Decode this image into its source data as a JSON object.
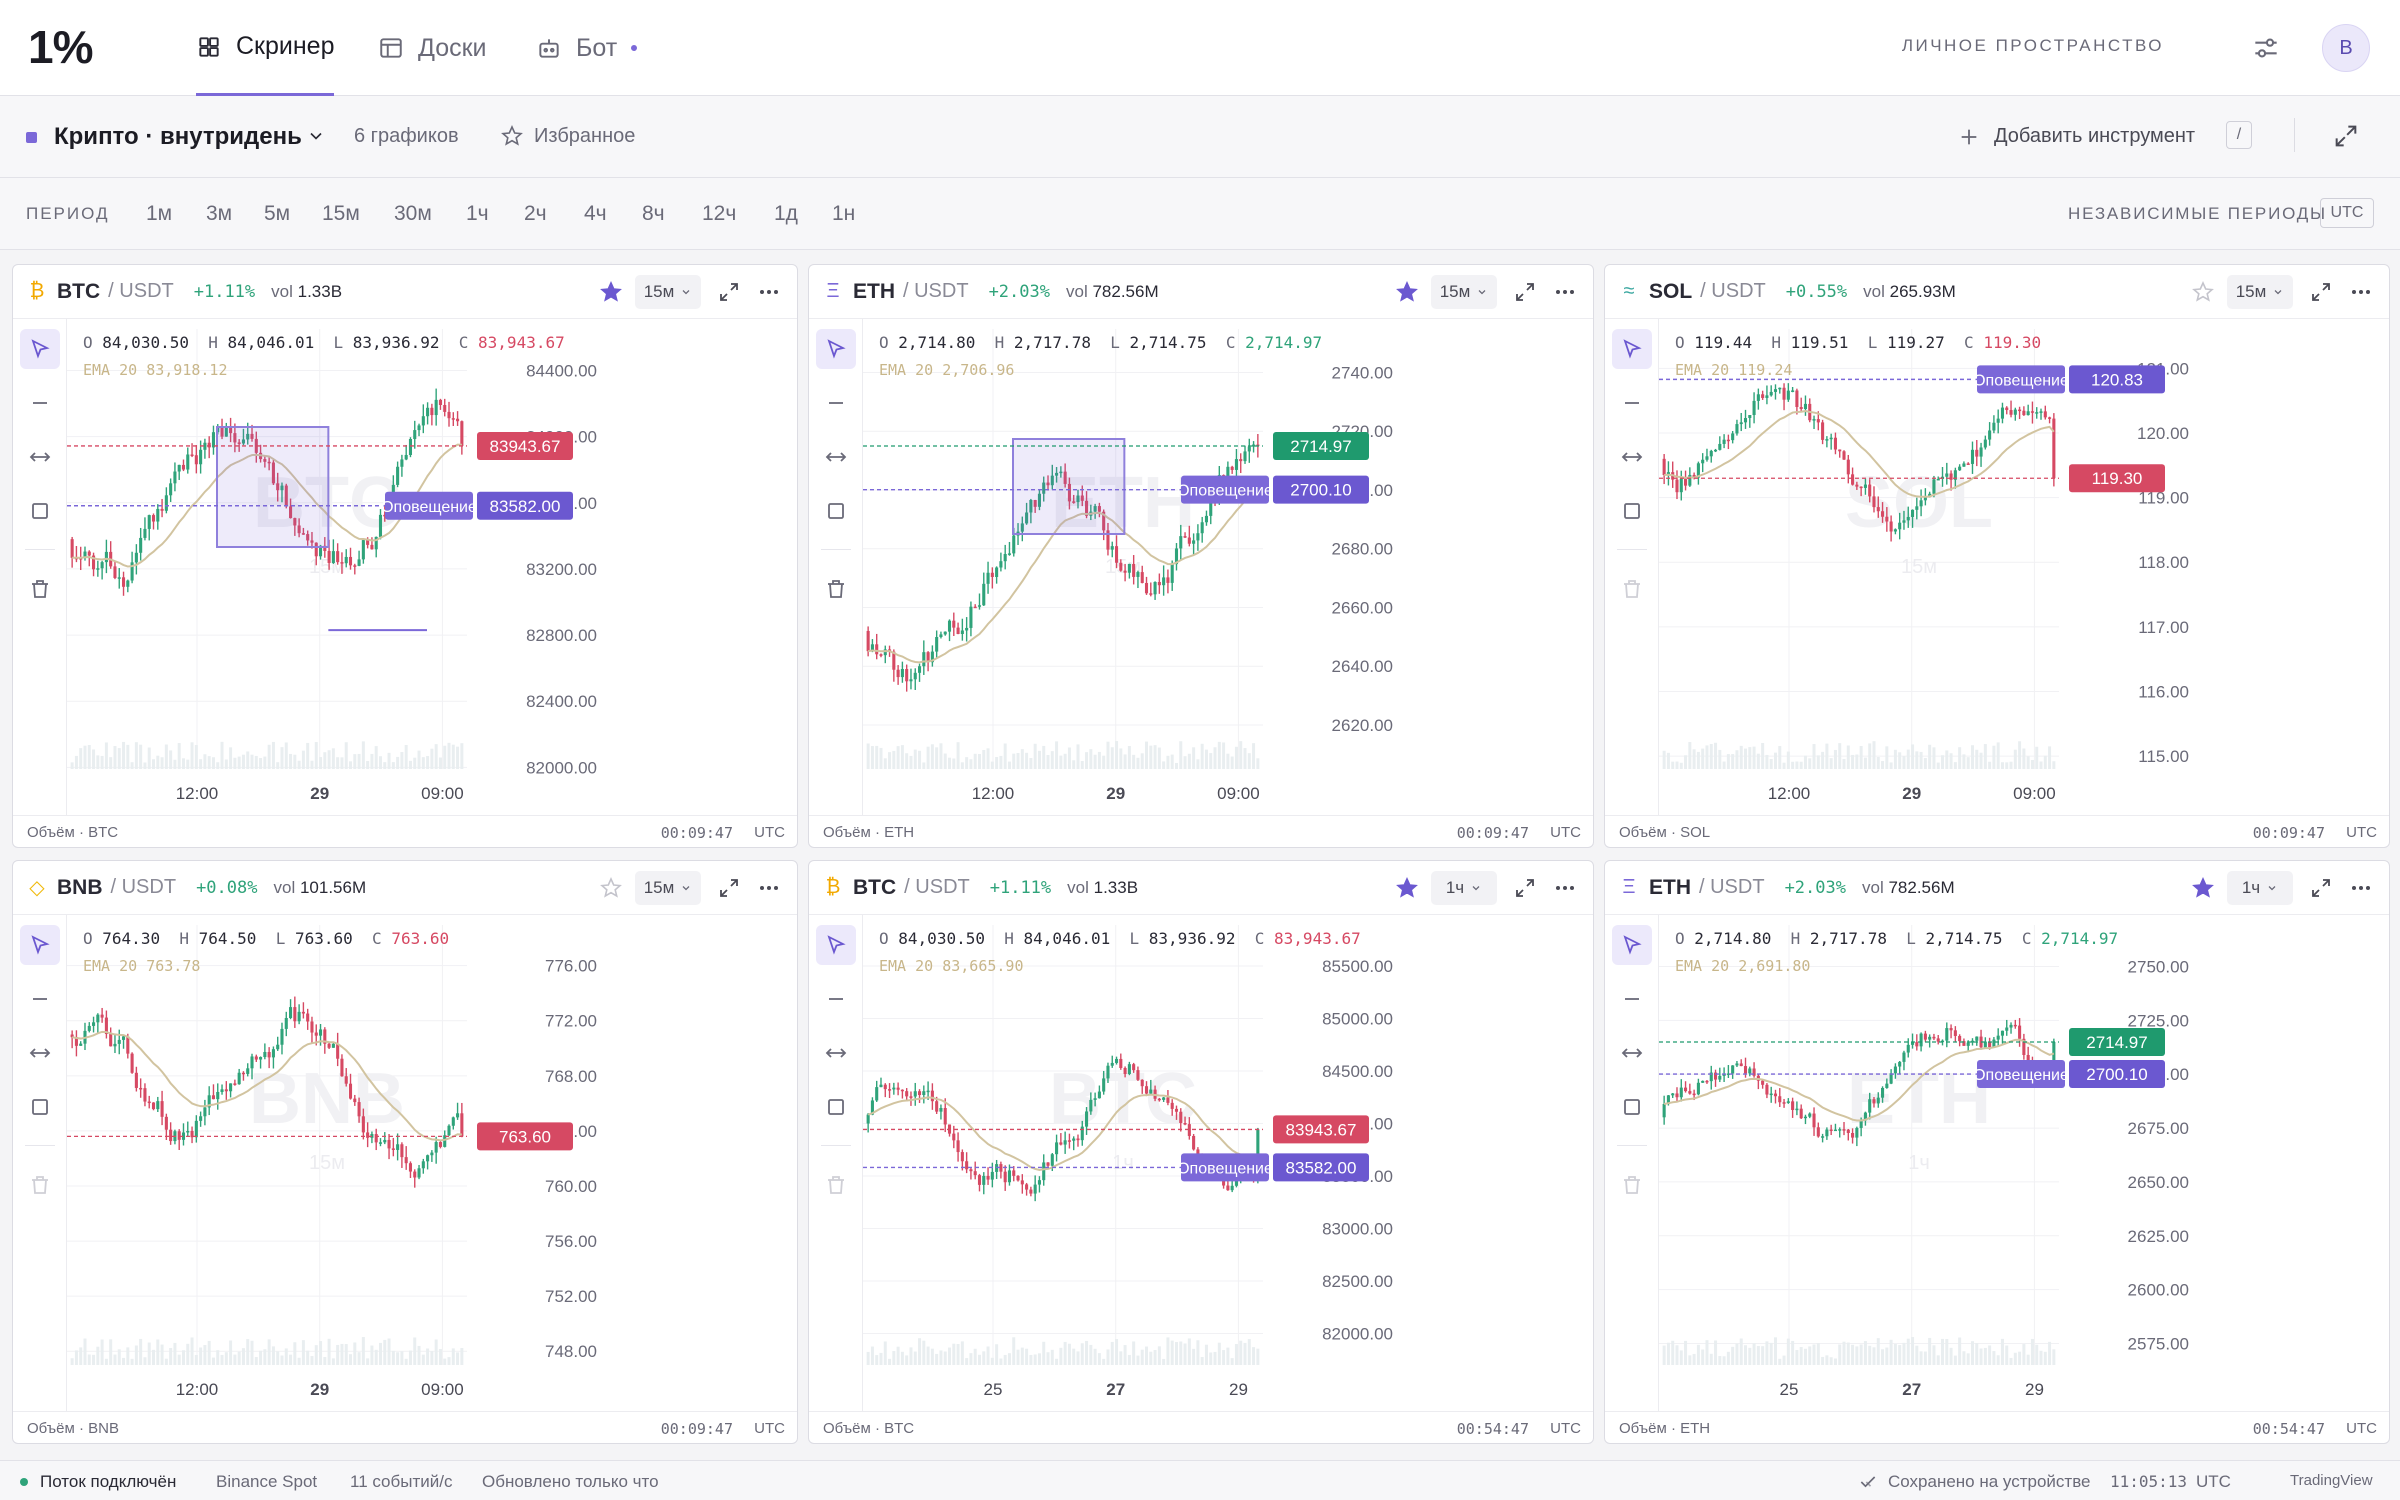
{
  "app": {
    "logo": "1%"
  },
  "nav": {
    "tabs": [
      {
        "label": "Скринер",
        "active": true
      },
      {
        "label": "Доски",
        "active": false
      },
      {
        "label": "Бот",
        "active": false
      }
    ],
    "workspace_label": "ЛИЧНОЕ ПРОСТРАНСТВО",
    "avatar_letter": "В"
  },
  "toolbar": {
    "board_name": "Крипто · внутридень",
    "chart_count": "6 графиков",
    "favorites": "Избранное",
    "add_instrument": "Добавить инструмент",
    "shortcut": "/"
  },
  "periods": {
    "label": "ПЕРИОД",
    "items": [
      "1м",
      "3м",
      "5м",
      "15м",
      "30м",
      "1ч",
      "2ч",
      "4ч",
      "8ч",
      "12ч",
      "1д",
      "1н"
    ],
    "independent_label": "НЕЗАВИСИМЫЕ ПЕРИОДЫ",
    "tz": "UTC"
  },
  "panels": [
    {
      "coin_glyph": "₿",
      "coin_color": "#f2a900",
      "symbol": "BTC",
      "quote": "/ USDT",
      "change": "+1.11%",
      "change_color": "#2fa37a",
      "vol_label": "vol",
      "vol": "1.33B",
      "starred": true,
      "timeframe": "15м",
      "o_label": "O",
      "o": "84,030.50",
      "h_label": "H",
      "h": "84,046.01",
      "l_label": "L",
      "l": "83,936.92",
      "c_label": "C",
      "c": "83,943.67",
      "close_color": "#d64963",
      "ema_label": "EMA 20",
      "ema": "83,918.12",
      "footer_left": "Объём · BTC",
      "footer_time": "00:09:47",
      "footer_tz": "UTC",
      "alert_label": "Оповещение",
      "delete_enabled": true,
      "chart_data": {
        "type": "candlestick",
        "y_ticks": [
          "84400.00",
          "84000.00",
          "83600.00",
          "83200.00",
          "82800.00",
          "82400.00",
          "82000.00"
        ],
        "ylim": [
          81990,
          84530
        ],
        "x_labels": [
          "12:00",
          "29",
          "09:00"
        ],
        "last_price": "83943.67",
        "last_price_value": 83943.67,
        "last_color": "#d64963",
        "alert_price": "83582.00",
        "alert_value": 83582,
        "watermark": "BTC",
        "watermark_sub": "15м",
        "show_box": true,
        "show_hline": true,
        "seed": 11,
        "start": 83380,
        "end": 83943.67,
        "lo": 82600,
        "hi": 84420
      }
    },
    {
      "coin_glyph": "Ξ",
      "coin_color": "#7b68d8",
      "symbol": "ETH",
      "quote": "/ USDT",
      "change": "+2.03%",
      "change_color": "#2fa37a",
      "vol_label": "vol",
      "vol": "782.56M",
      "starred": true,
      "timeframe": "15м",
      "o_label": "O",
      "o": "2,714.80",
      "h_label": "H",
      "h": "2,717.78",
      "l_label": "L",
      "l": "2,714.75",
      "c_label": "C",
      "c": "2,714.97",
      "close_color": "#2fa37a",
      "ema_label": "EMA 20",
      "ema": "2,706.96",
      "footer_left": "Объём · ETH",
      "footer_time": "00:09:47",
      "footer_tz": "UTC",
      "alert_label": "Оповещение",
      "delete_enabled": true,
      "chart_data": {
        "type": "candlestick",
        "y_ticks": [
          "2740.00",
          "2720.00",
          "2700.00",
          "2680.00",
          "2660.00",
          "2640.00",
          "2620.00"
        ],
        "ylim": [
          2605,
          2748
        ],
        "x_labels": [
          "12:00",
          "29",
          "09:00"
        ],
        "last_price": "2714.97",
        "last_price_value": 2714.97,
        "last_color": "#1f9a6e",
        "alert_price": "2700.10",
        "alert_value": 2700.1,
        "watermark": "ETH",
        "watermark_sub": "15м",
        "show_box": true,
        "show_hline": false,
        "seed": 23,
        "start": 2652,
        "end": 2714.97,
        "lo": 2632,
        "hi": 2733
      }
    },
    {
      "coin_glyph": "≈",
      "coin_color": "#3aa7a0",
      "symbol": "SOL",
      "quote": "/ USDT",
      "change": "+0.55%",
      "change_color": "#2fa37a",
      "vol_label": "vol",
      "vol": "265.93M",
      "starred": false,
      "timeframe": "15м",
      "o_label": "O",
      "o": "119.44",
      "h_label": "H",
      "h": "119.51",
      "l_label": "L",
      "l": "119.27",
      "c_label": "C",
      "c": "119.30",
      "close_color": "#d64963",
      "ema_label": "EMA 20",
      "ema": "119.24",
      "footer_left": "Объём · SOL",
      "footer_time": "00:09:47",
      "footer_tz": "UTC",
      "alert_label": "Оповещение",
      "delete_enabled": false,
      "chart_data": {
        "type": "candlestick",
        "y_ticks": [
          "121.00",
          "120.00",
          "119.00",
          "118.00",
          "117.00",
          "116.00",
          "115.00"
        ],
        "ylim": [
          114.8,
          121.3
        ],
        "x_labels": [
          "12:00",
          "29",
          "09:00"
        ],
        "last_price": "119.30",
        "last_price_value": 119.3,
        "last_color": "#d64963",
        "alert_price": "120.83",
        "alert_value": 120.83,
        "watermark": "SOL",
        "watermark_sub": "15м",
        "show_box": false,
        "show_hline": false,
        "seed": 37,
        "start": 119.6,
        "end": 119.3,
        "lo": 116.5,
        "hi": 120.7
      }
    },
    {
      "coin_glyph": "◇",
      "coin_color": "#f0b90b",
      "symbol": "BNB",
      "quote": "/ USDT",
      "change": "+0.08%",
      "change_color": "#2fa37a",
      "vol_label": "vol",
      "vol": "101.56M",
      "starred": false,
      "timeframe": "15м",
      "o_label": "O",
      "o": "764.30",
      "h_label": "H",
      "h": "764.50",
      "l_label": "L",
      "l": "763.60",
      "c_label": "C",
      "c": "763.60",
      "close_color": "#d64963",
      "ema_label": "EMA 20",
      "ema": "763.78",
      "footer_left": "Объём · BNB",
      "footer_time": "00:09:47",
      "footer_tz": "UTC",
      "alert_label": "Оповещение",
      "delete_enabled": false,
      "chart_data": {
        "type": "candlestick",
        "y_ticks": [
          "776.00",
          "772.00",
          "768.00",
          "764.00",
          "760.00",
          "756.00",
          "752.00",
          "748.00"
        ],
        "ylim": [
          747,
          777.5
        ],
        "x_labels": [
          "12:00",
          "29",
          "09:00"
        ],
        "last_price": "763.60",
        "last_price_value": 763.6,
        "last_color": "#d64963",
        "alert_price": "",
        "alert_value": null,
        "watermark": "BNB",
        "watermark_sub": "15м",
        "show_box": false,
        "show_hline": false,
        "seed": 53,
        "start": 771,
        "end": 763.6,
        "lo": 753,
        "hi": 773
      }
    },
    {
      "coin_glyph": "₿",
      "coin_color": "#f2a900",
      "symbol": "BTC",
      "quote": "/ USDT",
      "change": "+1.11%",
      "change_color": "#2fa37a",
      "vol_label": "vol",
      "vol": "1.33B",
      "starred": true,
      "timeframe": "1ч",
      "o_label": "O",
      "o": "84,030.50",
      "h_label": "H",
      "h": "84,046.01",
      "l_label": "L",
      "l": "83,936.92",
      "c_label": "C",
      "c": "83,943.67",
      "close_color": "#d64963",
      "ema_label": "EMA 20",
      "ema": "83,665.90",
      "footer_left": "Объём · BTC",
      "footer_time": "00:54:47",
      "footer_tz": "UTC",
      "alert_label": "Оповещение",
      "delete_enabled": false,
      "chart_data": {
        "type": "candlestick",
        "y_ticks": [
          "85500.00",
          "85000.00",
          "84500.00",
          "84000.00",
          "83500.00",
          "83000.00",
          "82500.00",
          "82000.00"
        ],
        "ylim": [
          81700,
          85700
        ],
        "x_labels": [
          "25",
          "27",
          "29"
        ],
        "last_price": "83943.67",
        "last_price_value": 83943.67,
        "last_color": "#d64963",
        "alert_price": "83582.00",
        "alert_value": 83582,
        "watermark": "BTC",
        "watermark_sub": "1ч",
        "show_box": false,
        "show_hline": false,
        "seed": 71,
        "start": 84000,
        "end": 83943.67,
        "lo": 82700,
        "hi": 85000
      }
    },
    {
      "coin_glyph": "Ξ",
      "coin_color": "#7b68d8",
      "symbol": "ETH",
      "quote": "/ USDT",
      "change": "+2.03%",
      "change_color": "#2fa37a",
      "vol_label": "vol",
      "vol": "782.56M",
      "starred": true,
      "timeframe": "1ч",
      "o_label": "O",
      "o": "2,714.80",
      "h_label": "H",
      "h": "2,717.78",
      "l_label": "L",
      "l": "2,714.75",
      "c_label": "C",
      "c": "2,714.97",
      "close_color": "#2fa37a",
      "ema_label": "EMA 20",
      "ema": "2,691.80",
      "footer_left": "Объём · ETH",
      "footer_time": "00:54:47",
      "footer_tz": "UTC",
      "alert_label": "Оповещение",
      "delete_enabled": false,
      "chart_data": {
        "type": "candlestick",
        "y_ticks": [
          "2750.00",
          "2725.00",
          "2700.00",
          "2675.00",
          "2650.00",
          "2625.00",
          "2600.00",
          "2575.00"
        ],
        "ylim": [
          2565,
          2760
        ],
        "x_labels": [
          "25",
          "27",
          "29"
        ],
        "last_price": "2714.97",
        "last_price_value": 2714.97,
        "last_color": "#1f9a6e",
        "alert_price": "2700.10",
        "alert_value": 2700.1,
        "watermark": "ETH",
        "watermark_sub": "1ч",
        "show_box": false,
        "show_hline": false,
        "seed": 89,
        "start": 2680,
        "end": 2714.97,
        "lo": 2630,
        "hi": 2730
      }
    }
  ],
  "status": {
    "stream": "Поток подключён",
    "exchange": "Binance Spot",
    "rate": "11 событий/с",
    "updated": "Обновлено только что",
    "saved": "Сохранено на устройстве",
    "clock": "11:05:13",
    "tz": "UTC",
    "brand": "TradingView"
  },
  "colors": {
    "accent": "#7b68d8",
    "up": "#2fa37a",
    "down": "#d64963",
    "ema": "#c8b68a"
  }
}
